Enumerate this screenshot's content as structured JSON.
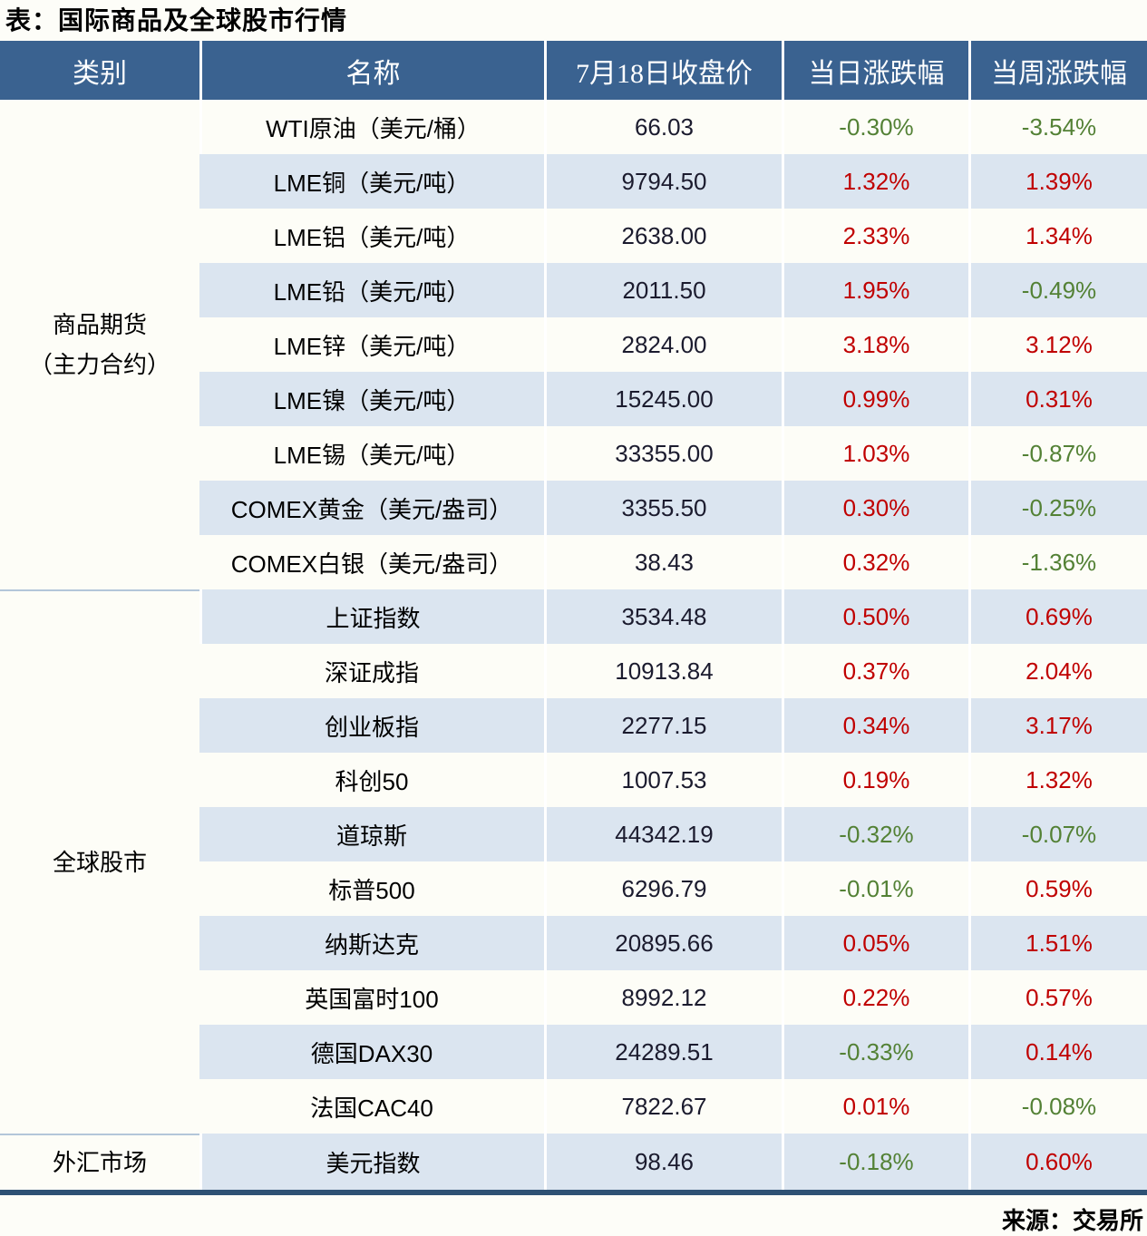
{
  "page": {
    "title": "表：国际商品及全球股市行情",
    "source": "来源：交易所"
  },
  "colors": {
    "header_bg": "#3A6290",
    "band_blue": "#dbe5f0",
    "band_white": "#fdfdf7",
    "bottom_bar": "#2E5174",
    "up_red": "#C00000",
    "down_green": "#538135",
    "close_text": "#1b1b2e"
  },
  "chart_data": {
    "type": "table",
    "title": "表：国际商品及全球股市行情",
    "columns": [
      "类别",
      "名称",
      "7月18日收盘价",
      "当日涨跌幅",
      "当周涨跌幅"
    ],
    "sections": [
      {
        "category": "商品期货（主力合约）",
        "category_lines": [
          "商品期货",
          "（主力合约）"
        ],
        "rows": [
          {
            "name": "WTI原油（美元/桶）",
            "close": "66.03",
            "day": "-0.30%",
            "week": "-3.54%"
          },
          {
            "name": "LME铜（美元/吨）",
            "close": "9794.50",
            "day": "1.32%",
            "week": "1.39%"
          },
          {
            "name": "LME铝（美元/吨）",
            "close": "2638.00",
            "day": "2.33%",
            "week": "1.34%"
          },
          {
            "name": "LME铅（美元/吨）",
            "close": "2011.50",
            "day": "1.95%",
            "week": "-0.49%"
          },
          {
            "name": "LME锌（美元/吨）",
            "close": "2824.00",
            "day": "3.18%",
            "week": "3.12%"
          },
          {
            "name": "LME镍（美元/吨）",
            "close": "15245.00",
            "day": "0.99%",
            "week": "0.31%"
          },
          {
            "name": "LME锡（美元/吨）",
            "close": "33355.00",
            "day": "1.03%",
            "week": "-0.87%"
          },
          {
            "name": "COMEX黄金（美元/盎司）",
            "close": "3355.50",
            "day": "0.30%",
            "week": "-0.25%"
          },
          {
            "name": "COMEX白银（美元/盎司）",
            "close": "38.43",
            "day": "0.32%",
            "week": "-1.36%"
          }
        ]
      },
      {
        "category": "全球股市",
        "category_lines": [
          "全球股市"
        ],
        "rows": [
          {
            "name": "上证指数",
            "close": "3534.48",
            "day": "0.50%",
            "week": "0.69%"
          },
          {
            "name": "深证成指",
            "close": "10913.84",
            "day": "0.37%",
            "week": "2.04%"
          },
          {
            "name": "创业板指",
            "close": "2277.15",
            "day": "0.34%",
            "week": "3.17%"
          },
          {
            "name": "科创50",
            "close": "1007.53",
            "day": "0.19%",
            "week": "1.32%"
          },
          {
            "name": "道琼斯",
            "close": "44342.19",
            "day": "-0.32%",
            "week": "-0.07%"
          },
          {
            "name": "标普500",
            "close": "6296.79",
            "day": "-0.01%",
            "week": "0.59%"
          },
          {
            "name": "纳斯达克",
            "close": "20895.66",
            "day": "0.05%",
            "week": "1.51%"
          },
          {
            "name": "英国富时100",
            "close": "8992.12",
            "day": "0.22%",
            "week": "0.57%"
          },
          {
            "name": "德国DAX30",
            "close": "24289.51",
            "day": "-0.33%",
            "week": "0.14%"
          },
          {
            "name": "法国CAC40",
            "close": "7822.67",
            "day": "0.01%",
            "week": "-0.08%"
          }
        ]
      },
      {
        "category": "外汇市场",
        "category_lines": [
          "外汇市场"
        ],
        "rows": [
          {
            "name": "美元指数",
            "close": "98.46",
            "day": "-0.18%",
            "week": "0.60%"
          }
        ]
      }
    ],
    "source": "来源：交易所"
  }
}
